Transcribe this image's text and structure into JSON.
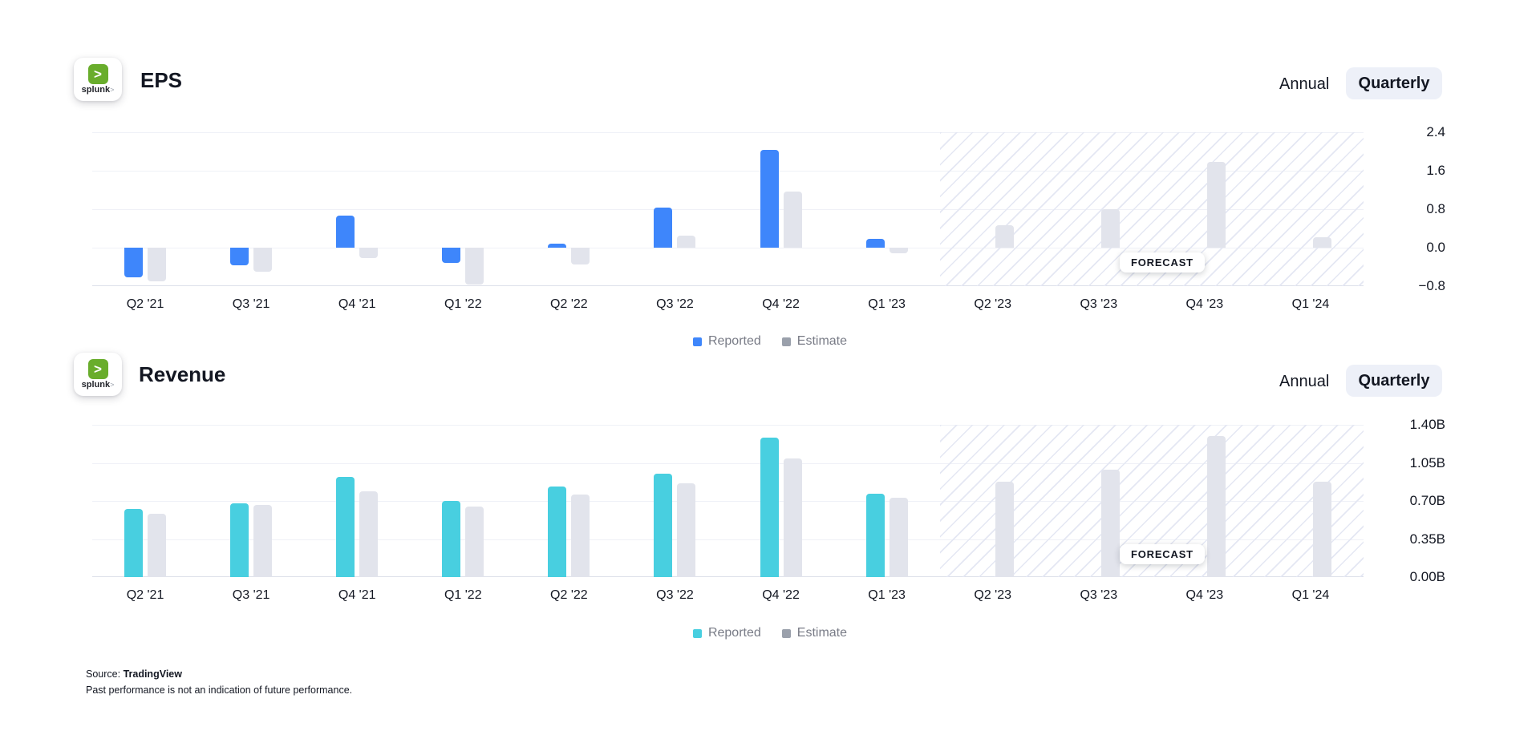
{
  "brand": {
    "name": "splunk",
    "symbol": ">"
  },
  "controls": {
    "annual_label": "Annual",
    "quarterly_label": "Quarterly",
    "active": "Quarterly"
  },
  "legend": {
    "reported_label": "Reported",
    "estimate_label": "Estimate"
  },
  "forecast": {
    "badge_label": "FORECAST"
  },
  "footer": {
    "source_prefix": "Source: ",
    "source_name": "TradingView",
    "disclaimer": "Past performance is not an indication of future performance."
  },
  "colors": {
    "reported_eps": "#3e86fb",
    "reported_revenue": "#48cfe0",
    "estimate_bar": "#e2e4ec",
    "estimate_swatch": "#9aa0ab",
    "toggle_pill_bg": "#edf0f8",
    "gridline": "#eff1f7",
    "axis_line": "#dde0ea",
    "hatch_line": "#e4e7f3"
  },
  "chart_data": [
    {
      "id": "eps",
      "type": "bar",
      "title": "EPS",
      "categories": [
        "Q2 '21",
        "Q3 '21",
        "Q4 '21",
        "Q1 '22",
        "Q2 '22",
        "Q3 '22",
        "Q4 '22",
        "Q1 '23",
        "Q2 '23",
        "Q3 '23",
        "Q4 '23",
        "Q1 '24"
      ],
      "series": [
        {
          "name": "Reported",
          "values": [
            -0.62,
            -0.37,
            0.66,
            -0.32,
            0.09,
            0.83,
            2.04,
            0.18,
            null,
            null,
            null,
            null
          ]
        },
        {
          "name": "Estimate",
          "values": [
            -0.7,
            -0.5,
            -0.21,
            -0.76,
            -0.35,
            0.25,
            1.16,
            -0.11,
            0.46,
            0.8,
            1.78,
            0.21
          ]
        }
      ],
      "forecast_start_index": 8,
      "ylim": [
        -0.8,
        2.4
      ],
      "ytick_values": [
        2.4,
        1.6,
        0.8,
        0.0,
        -0.8
      ],
      "ytick_labels": [
        "2.4",
        "1.6",
        "0.8",
        "0.0",
        "−0.8"
      ],
      "grid": true,
      "legend_position": "bottom-center",
      "yaxis_position": "right"
    },
    {
      "id": "revenue",
      "type": "bar",
      "title": "Revenue",
      "categories": [
        "Q2 '21",
        "Q3 '21",
        "Q4 '21",
        "Q1 '22",
        "Q2 '22",
        "Q3 '22",
        "Q4 '22",
        "Q1 '23",
        "Q2 '23",
        "Q3 '23",
        "Q4 '23",
        "Q1 '24"
      ],
      "series": [
        {
          "name": "Reported",
          "values": [
            0.63,
            0.68,
            0.92,
            0.7,
            0.83,
            0.95,
            1.28,
            0.77,
            null,
            null,
            null,
            null
          ]
        },
        {
          "name": "Estimate",
          "values": [
            0.58,
            0.66,
            0.79,
            0.65,
            0.76,
            0.86,
            1.09,
            0.73,
            0.88,
            0.99,
            1.3,
            0.88
          ]
        }
      ],
      "forecast_start_index": 8,
      "ylim": [
        0,
        1.4
      ],
      "ytick_values": [
        1.4,
        1.05,
        0.7,
        0.35,
        0.0
      ],
      "ytick_labels": [
        "1.40B",
        "1.05B",
        "0.70B",
        "0.35B",
        "0.00B"
      ],
      "grid": true,
      "legend_position": "bottom-center",
      "yaxis_position": "right"
    }
  ]
}
